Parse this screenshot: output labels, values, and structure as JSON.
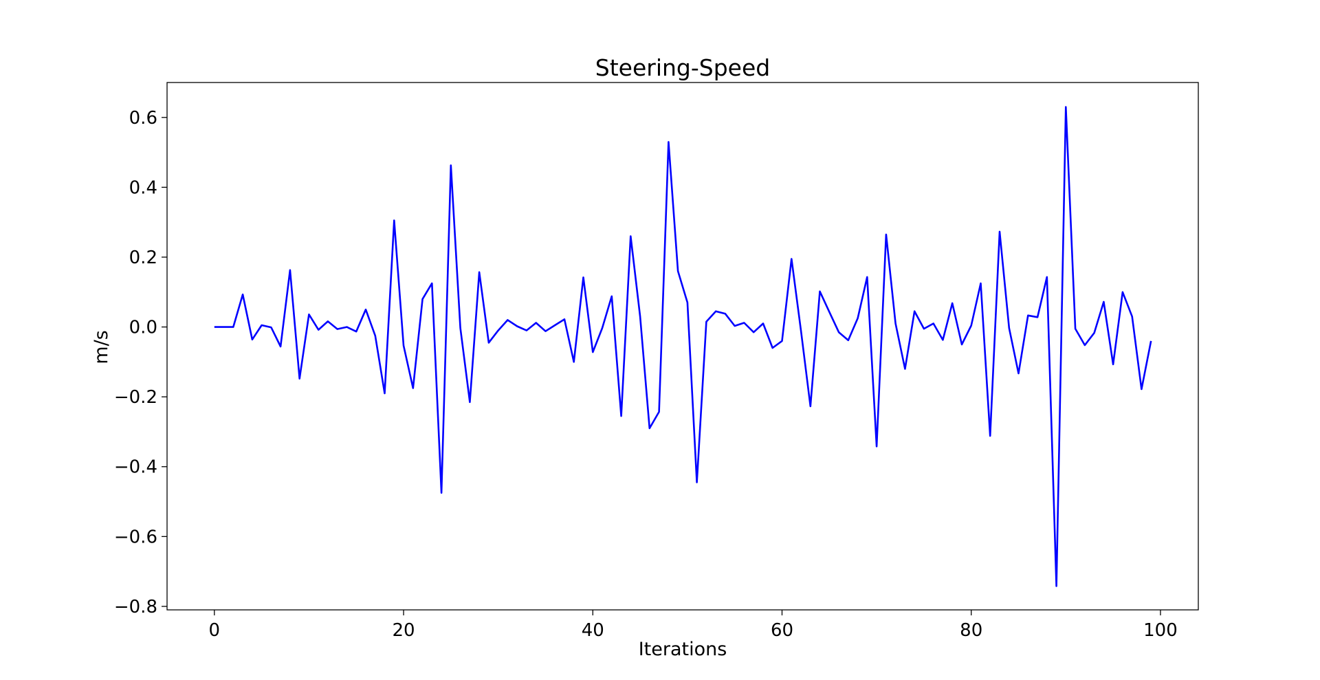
{
  "chart_data": {
    "type": "line",
    "title": "Steering-Speed",
    "xlabel": "Iterations",
    "ylabel": "m/s",
    "xlim": [
      -5,
      104
    ],
    "ylim": [
      -0.81,
      0.7
    ],
    "grid": false,
    "x_ticks": [
      0,
      20,
      40,
      60,
      80,
      100
    ],
    "x_tick_labels": [
      "0",
      "20",
      "40",
      "60",
      "80",
      "100"
    ],
    "y_ticks": [
      0.6,
      0.4,
      0.2,
      0.0,
      -0.2,
      -0.4,
      -0.6,
      -0.8
    ],
    "y_tick_labels": [
      "0.6",
      "0.4",
      "0.2",
      "0.0",
      "−0.2",
      "−0.4",
      "−0.6",
      "−0.8"
    ],
    "series": [
      {
        "color": "#0000ff",
        "x": [
          0,
          1,
          2,
          3,
          4,
          5,
          6,
          7,
          8,
          9,
          10,
          11,
          12,
          13,
          14,
          15,
          16,
          17,
          18,
          19,
          20,
          21,
          22,
          23,
          24,
          25,
          26,
          27,
          28,
          29,
          30,
          31,
          32,
          33,
          34,
          35,
          36,
          37,
          38,
          39,
          40,
          41,
          42,
          43,
          44,
          45,
          46,
          47,
          48,
          49,
          50,
          51,
          52,
          53,
          54,
          55,
          56,
          57,
          58,
          59,
          60,
          61,
          62,
          63,
          64,
          65,
          66,
          67,
          68,
          69,
          70,
          71,
          72,
          73,
          74,
          75,
          76,
          77,
          78,
          79,
          80,
          81,
          82,
          83,
          84,
          85,
          86,
          87,
          88,
          89,
          90,
          91,
          92,
          93,
          94,
          95,
          96,
          97,
          98,
          99
        ],
        "y": [
          0.0,
          0.0,
          0.0,
          0.093,
          -0.036,
          0.005,
          -0.001,
          -0.056,
          0.163,
          -0.148,
          0.036,
          -0.008,
          0.016,
          -0.006,
          0.0,
          -0.013,
          0.05,
          -0.025,
          -0.19,
          0.305,
          -0.053,
          -0.175,
          0.08,
          0.125,
          -0.475,
          0.463,
          -0.003,
          -0.215,
          0.157,
          -0.045,
          -0.01,
          0.02,
          0.002,
          -0.01,
          0.012,
          -0.012,
          0.005,
          0.022,
          -0.1,
          0.142,
          -0.072,
          -0.003,
          0.088,
          -0.255,
          0.26,
          0.03,
          -0.29,
          -0.243,
          0.53,
          0.16,
          0.07,
          -0.445,
          0.015,
          0.045,
          0.038,
          0.003,
          0.012,
          -0.015,
          0.01,
          -0.06,
          -0.04,
          0.195,
          -0.01,
          -0.227,
          0.102,
          0.043,
          -0.015,
          -0.038,
          0.025,
          0.143,
          -0.342,
          0.265,
          0.01,
          -0.12,
          0.045,
          -0.005,
          0.01,
          -0.037,
          0.068,
          -0.05,
          0.004,
          0.125,
          -0.312,
          0.273,
          -0.003,
          -0.133,
          0.033,
          0.028,
          0.143,
          -0.742,
          0.63,
          -0.005,
          -0.052,
          -0.017,
          0.072,
          -0.107,
          0.1,
          0.03,
          -0.178,
          -0.04
        ]
      }
    ]
  }
}
